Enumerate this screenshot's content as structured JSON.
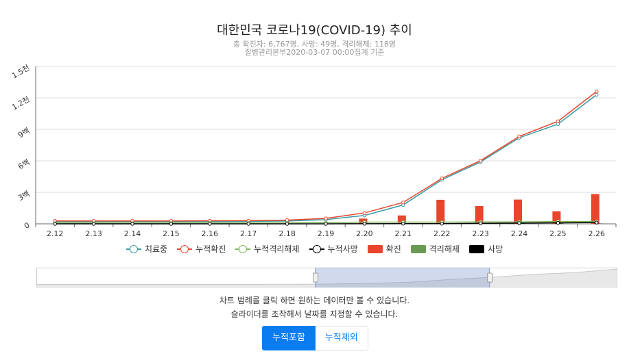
{
  "header": {
    "title": "대한민국 코로나19(COVID-19) 추이",
    "summary": "총 확진자: 6,767명, 사망: 49명, 격리해제: 118명",
    "source": "질병관리본부2020-03-07 00:00집계 기준"
  },
  "chart_data": {
    "type": "line",
    "title": "대한민국 코로나19(COVID-19) 추이",
    "categories": [
      "2.12",
      "2.13",
      "2.14",
      "2.15",
      "2.16",
      "2.17",
      "2.18",
      "2.19",
      "2.20",
      "2.21",
      "2.22",
      "2.23",
      "2.24",
      "2.25",
      "2.26"
    ],
    "y_ticks": [
      "0",
      "3백",
      "6백",
      "9백",
      "1.2천",
      "1.5천"
    ],
    "ylim": [
      0,
      1500
    ],
    "grid": true,
    "legend_position": "bottom",
    "series": [
      {
        "name": "치료중",
        "type": "line",
        "color": "#3a9aa3",
        "values": [
          20,
          20,
          21,
          21,
          22,
          23,
          27,
          40,
          80,
          180,
          420,
          590,
          820,
          950,
          1230
        ]
      },
      {
        "name": "누적확진",
        "type": "line",
        "color": "#e8452c",
        "values": [
          28,
          28,
          28,
          28,
          29,
          30,
          35,
          52,
          104,
          204,
          433,
          602,
          833,
          977,
          1261
        ]
      },
      {
        "name": "누적격리해제",
        "type": "line",
        "color": "#7cb45c",
        "values": [
          7,
          7,
          7,
          8,
          9,
          9,
          10,
          12,
          16,
          16,
          16,
          18,
          18,
          22,
          22
        ]
      },
      {
        "name": "누적사망",
        "type": "line",
        "color": "#000000",
        "values": [
          0,
          0,
          0,
          0,
          0,
          0,
          0,
          0,
          1,
          2,
          2,
          5,
          7,
          10,
          12
        ]
      },
      {
        "name": "확진",
        "type": "bar",
        "color": "#e8452c",
        "values": [
          0,
          0,
          0,
          0,
          0,
          0,
          0,
          0,
          50,
          80,
          229,
          170,
          231,
          120,
          284
        ]
      },
      {
        "name": "격리해제",
        "type": "bar",
        "color": "#6a9a52",
        "values": [
          0,
          0,
          0,
          0,
          0,
          0,
          0,
          0,
          0,
          0,
          0,
          2,
          0,
          4,
          0
        ]
      },
      {
        "name": "사망",
        "type": "bar",
        "color": "#000000",
        "values": [
          0,
          0,
          0,
          0,
          0,
          0,
          0,
          0,
          1,
          1,
          0,
          3,
          2,
          3,
          2
        ]
      }
    ]
  },
  "navigator": {
    "selected_range_fraction": [
      0.48,
      0.78
    ]
  },
  "hints": {
    "line1": "차트 범례를 클릭 하면 원하는 데이터만 볼 수 있습니다.",
    "line2": "슬라이더를 조작해서 날짜를 지정할 수 있습니다."
  },
  "buttons": {
    "include_cumulative": "누적포함",
    "exclude_cumulative": "누적제외"
  }
}
